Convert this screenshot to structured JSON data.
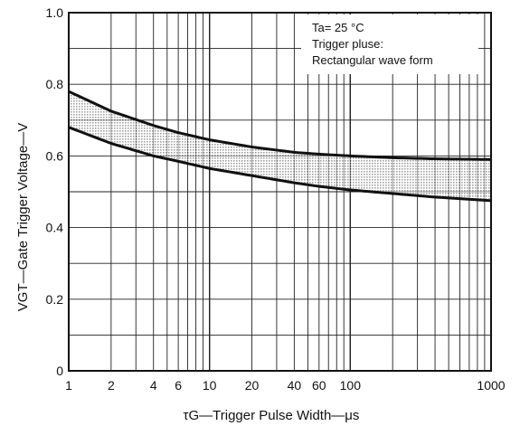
{
  "chart_data": {
    "type": "area",
    "x_scale": "log",
    "xlim": [
      1,
      1000
    ],
    "ylim": [
      0,
      1.0
    ],
    "grid": true,
    "xlabel": "τG—Trigger Pulse Width—μs",
    "ylabel": "VGT—Gate Trigger Voltage—V",
    "x_ticks": [
      "1",
      "2",
      "4",
      "6",
      "10",
      "20",
      "40",
      "60",
      "100",
      "1000"
    ],
    "y_ticks": [
      "0",
      "0.2",
      "0.4",
      "0.6",
      "0.8",
      "1.0"
    ],
    "conditions": [
      "Ta= 25 °C",
      "Trigger pluse:",
      "Rectangular wave form"
    ],
    "series": [
      {
        "role": "upper-bound",
        "x": [
          1,
          2,
          4,
          6,
          10,
          20,
          40,
          60,
          100,
          200,
          400,
          1000
        ],
        "values": [
          0.78,
          0.725,
          0.685,
          0.665,
          0.645,
          0.625,
          0.61,
          0.605,
          0.6,
          0.595,
          0.592,
          0.59
        ]
      },
      {
        "role": "lower-bound",
        "x": [
          1,
          2,
          4,
          6,
          10,
          20,
          40,
          60,
          100,
          200,
          400,
          1000
        ],
        "values": [
          0.68,
          0.635,
          0.6,
          0.585,
          0.565,
          0.545,
          0.525,
          0.515,
          0.505,
          0.495,
          0.485,
          0.475
        ]
      }
    ],
    "band_fill": "shaded region between bounds"
  },
  "colors": {
    "line": "#111111",
    "grid": "#222222",
    "band": "#cccccc",
    "background": "#ffffff"
  }
}
